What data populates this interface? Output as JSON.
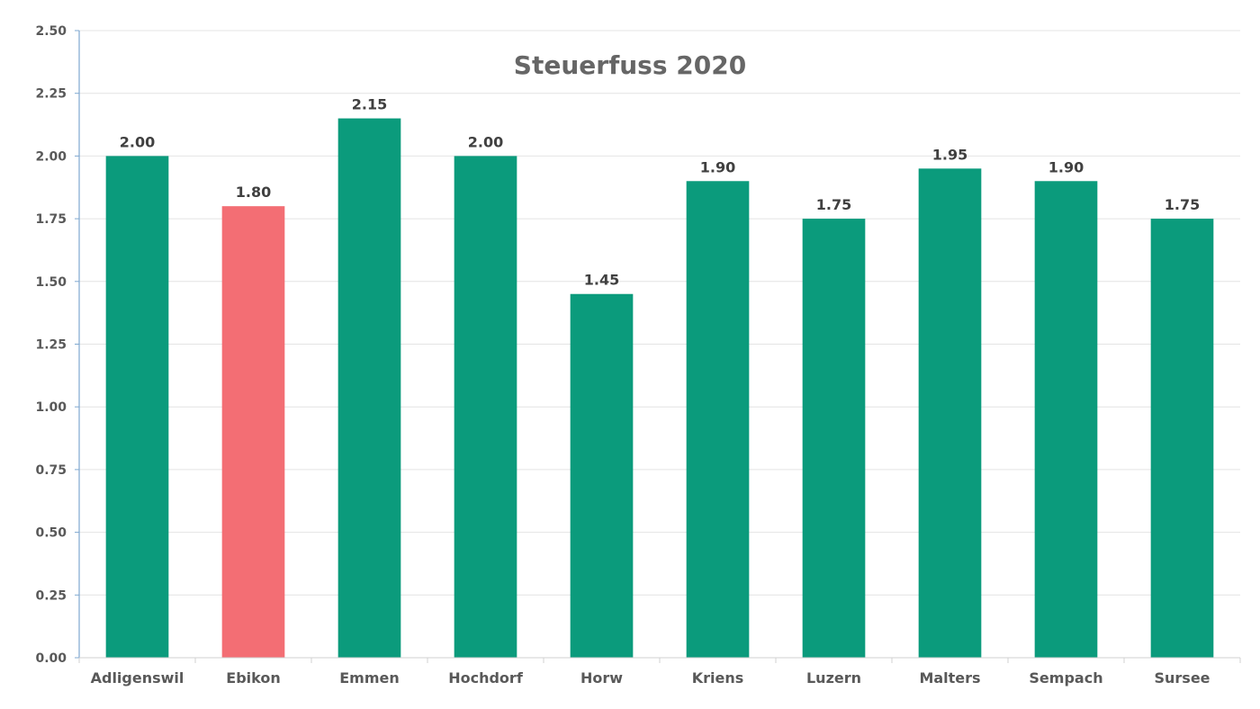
{
  "chart_data": {
    "type": "bar",
    "title": "Steuerfuss 2020",
    "xlabel": "",
    "ylabel": "",
    "categories": [
      "Adligenswil",
      "Ebikon",
      "Emmen",
      "Hochdorf",
      "Horw",
      "Kriens",
      "Luzern",
      "Malters",
      "Sempach",
      "Sursee"
    ],
    "values": [
      2.0,
      1.8,
      2.15,
      2.0,
      1.45,
      1.9,
      1.75,
      1.95,
      1.9,
      1.75
    ],
    "data_labels": [
      "2.00",
      "1.80",
      "2.15",
      "2.00",
      "1.45",
      "1.90",
      "1.75",
      "1.95",
      "1.90",
      "1.75"
    ],
    "ylim": [
      0,
      2.5
    ],
    "yticks": [
      "0.00",
      "0.25",
      "0.50",
      "0.75",
      "1.00",
      "1.25",
      "1.50",
      "1.75",
      "2.00",
      "2.25",
      "2.50"
    ],
    "grid": true,
    "legend": "none",
    "colors": {
      "default_bar": "#0b9b7c",
      "highlight_bar": "#f36e74",
      "highlight_category": "Ebikon",
      "axis": "#7fa8d0",
      "grid": "#e4e4e4"
    }
  }
}
